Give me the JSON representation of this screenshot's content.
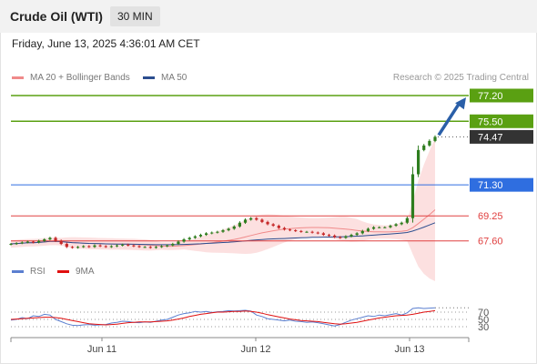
{
  "header": {
    "title": "Crude Oil (WTI)",
    "timeframe": "30 MIN"
  },
  "datetime": "Friday, June 13, 2025 4:36:01 AM CET",
  "legend": {
    "bollinger": {
      "label": "MA 20 + Bollinger Bands",
      "color": "#f08a8a"
    },
    "ma50": {
      "label": "MA 50",
      "color": "#2c4e8f"
    }
  },
  "credit": "Research © 2025 Trading Central",
  "rsi_legend": {
    "rsi": {
      "label": "RSI",
      "color": "#5b7fd0"
    },
    "ma9": {
      "label": "9MA",
      "color": "#e01010"
    }
  },
  "colors": {
    "resistance": "#5aa012",
    "pivot": "#2f6ee0",
    "support": "#e04040",
    "last_price": "#333333",
    "candle_up": "#2e7d1e",
    "candle_down": "#c62828",
    "arrow": "#2a5fa8"
  },
  "chart_data": [
    {
      "type": "candlestick",
      "x_ticks": [
        "Jun 11",
        "Jun 12",
        "Jun 13"
      ],
      "ylim": [
        66.5,
        77.8
      ],
      "last_price": 74.47,
      "levels": [
        {
          "value": 77.2,
          "label": "77.20",
          "kind": "resistance",
          "style": "filled"
        },
        {
          "value": 75.5,
          "label": "75.50",
          "kind": "resistance",
          "style": "filled"
        },
        {
          "value": 71.3,
          "label": "71.30",
          "kind": "pivot",
          "style": "filled"
        },
        {
          "value": 69.25,
          "label": "69.25",
          "kind": "support",
          "style": "text"
        },
        {
          "value": 67.6,
          "label": "67.60",
          "kind": "support",
          "style": "text"
        }
      ],
      "close": [
        67.4,
        67.45,
        67.5,
        67.55,
        67.5,
        67.6,
        67.7,
        67.8,
        67.6,
        67.4,
        67.2,
        67.15,
        67.2,
        67.25,
        67.2,
        67.3,
        67.25,
        67.2,
        67.25,
        67.3,
        67.35,
        67.3,
        67.25,
        67.2,
        67.2,
        67.15,
        67.2,
        67.25,
        67.3,
        67.4,
        67.55,
        67.7,
        67.8,
        67.9,
        68.0,
        68.1,
        68.15,
        68.2,
        68.3,
        68.4,
        68.55,
        68.8,
        69.0,
        69.1,
        69.0,
        68.85,
        68.7,
        68.6,
        68.45,
        68.35,
        68.3,
        68.25,
        68.2,
        68.2,
        68.15,
        68.1,
        68.0,
        67.95,
        67.85,
        67.8,
        67.9,
        68.0,
        68.1,
        68.25,
        68.4,
        68.5,
        68.5,
        68.5,
        68.6,
        68.7,
        68.8,
        69.1,
        72.0,
        73.6,
        73.9,
        74.2,
        74.47
      ],
      "rsi": {
        "levels": [
          70,
          50,
          30
        ],
        "rsi": [
          48,
          50,
          55,
          52,
          60,
          58,
          64,
          62,
          50,
          44,
          38,
          34,
          33,
          35,
          36,
          34,
          35,
          36,
          40,
          42,
          45,
          44,
          42,
          41,
          43,
          42,
          45,
          48,
          50,
          56,
          62,
          66,
          68,
          72,
          70,
          72,
          69,
          71,
          72,
          74,
          73,
          74,
          75,
          73,
          62,
          58,
          52,
          50,
          48,
          46,
          48,
          45,
          44,
          42,
          43,
          41,
          38,
          35,
          32,
          36,
          42,
          48,
          52,
          56,
          60,
          58,
          62,
          60,
          63,
          66,
          62,
          68,
          80,
          82,
          80,
          81,
          82
        ],
        "ma9": [
          50,
          51,
          52,
          53,
          54,
          55,
          56,
          56,
          55,
          53,
          50,
          47,
          44,
          41,
          38,
          37,
          36,
          35,
          36,
          37,
          39,
          41,
          42,
          43,
          43,
          43,
          44,
          45,
          46,
          48,
          51,
          54,
          58,
          61,
          64,
          66,
          68,
          70,
          70,
          71,
          72,
          72,
          73,
          72,
          70,
          67,
          63,
          60,
          57,
          54,
          51,
          49,
          47,
          46,
          45,
          44,
          42,
          40,
          38,
          37,
          38,
          40,
          42,
          45,
          48,
          51,
          54,
          56,
          58,
          60,
          61,
          62,
          64,
          67,
          70,
          72,
          74
        ]
      }
    }
  ]
}
